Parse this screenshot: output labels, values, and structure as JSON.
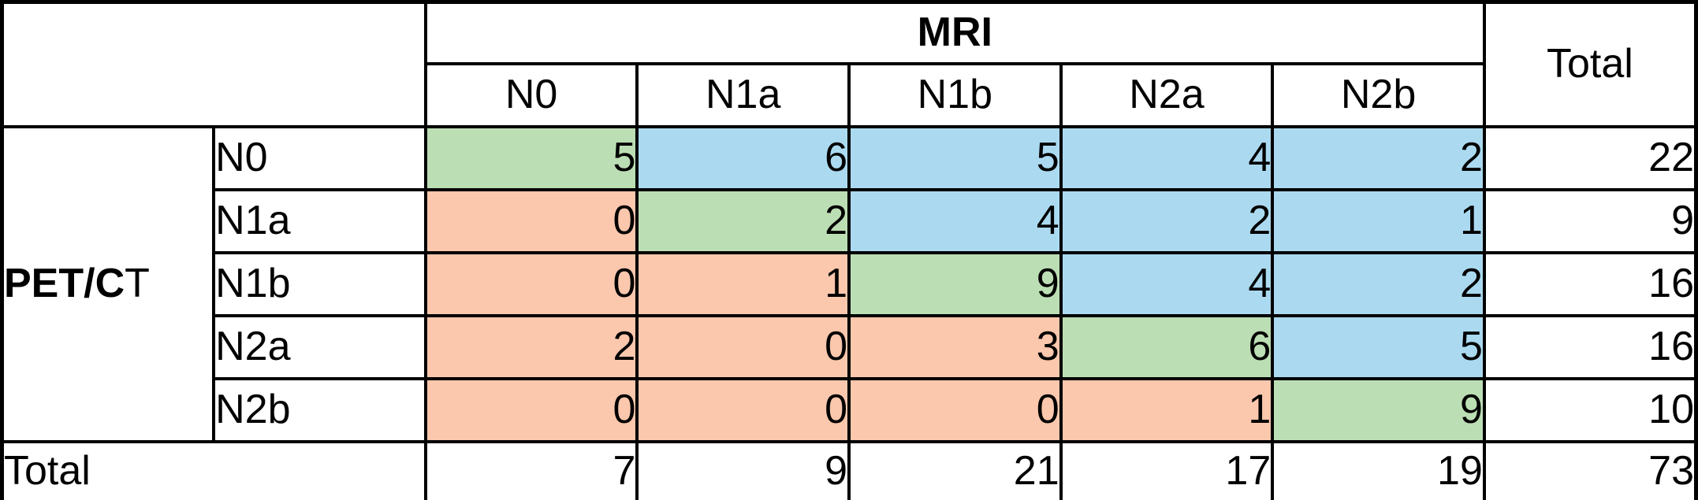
{
  "colors": {
    "agree": "#bcdeb4",
    "mri_higher": "#abdaf0",
    "petct_higher": "#fbc7ad",
    "grid": "#000000"
  },
  "table": {
    "col_group_header": "MRI",
    "row_group_label_bold": "PET/C",
    "row_group_label_tail": "T",
    "total_col_header": "Total",
    "mri_categories": [
      "N0",
      "N1a",
      "N1b",
      "N2a",
      "N2b"
    ],
    "rows": [
      {
        "label": "N0",
        "cells": [
          {
            "v": "5",
            "c": "agree"
          },
          {
            "v": "6",
            "c": "mri_higher"
          },
          {
            "v": "5",
            "c": "mri_higher"
          },
          {
            "v": "4",
            "c": "mri_higher"
          },
          {
            "v": "2",
            "c": "mri_higher"
          }
        ],
        "total": "22"
      },
      {
        "label": "N1a",
        "cells": [
          {
            "v": "0",
            "c": "petct_higher"
          },
          {
            "v": "2",
            "c": "agree"
          },
          {
            "v": "4",
            "c": "mri_higher"
          },
          {
            "v": "2",
            "c": "mri_higher"
          },
          {
            "v": "1",
            "c": "mri_higher"
          }
        ],
        "total": "9"
      },
      {
        "label": "N1b",
        "cells": [
          {
            "v": "0",
            "c": "petct_higher"
          },
          {
            "v": "1",
            "c": "petct_higher"
          },
          {
            "v": "9",
            "c": "agree"
          },
          {
            "v": "4",
            "c": "mri_higher"
          },
          {
            "v": "2",
            "c": "mri_higher"
          }
        ],
        "total": "16"
      },
      {
        "label": "N2a",
        "cells": [
          {
            "v": "2",
            "c": "petct_higher"
          },
          {
            "v": "0",
            "c": "petct_higher"
          },
          {
            "v": "3",
            "c": "petct_higher"
          },
          {
            "v": "6",
            "c": "agree"
          },
          {
            "v": "5",
            "c": "mri_higher"
          }
        ],
        "total": "16"
      },
      {
        "label": "N2b",
        "cells": [
          {
            "v": "0",
            "c": "petct_higher"
          },
          {
            "v": "0",
            "c": "petct_higher"
          },
          {
            "v": "0",
            "c": "petct_higher"
          },
          {
            "v": "1",
            "c": "petct_higher"
          },
          {
            "v": "9",
            "c": "agree"
          }
        ],
        "total": "10"
      }
    ],
    "totals_row": {
      "label": "Total",
      "cells": [
        "7",
        "9",
        "21",
        "17",
        "19"
      ],
      "grand_total": "73"
    }
  },
  "chart_data": {
    "type": "table",
    "row_variable": "PET/CT",
    "column_variable": "MRI",
    "categories": [
      "N0",
      "N1a",
      "N1b",
      "N2a",
      "N2b"
    ],
    "matrix": [
      [
        5,
        6,
        5,
        4,
        2
      ],
      [
        0,
        2,
        4,
        2,
        1
      ],
      [
        0,
        1,
        9,
        4,
        2
      ],
      [
        2,
        0,
        3,
        6,
        5
      ],
      [
        0,
        0,
        0,
        1,
        9
      ]
    ],
    "row_totals": [
      22,
      9,
      16,
      16,
      10
    ],
    "column_totals": [
      7,
      9,
      21,
      17,
      19
    ],
    "grand_total": 73,
    "cell_color_coding": {
      "diagonal_agreement": "#bcdeb4",
      "above_diagonal_mri_higher": "#abdaf0",
      "below_diagonal_petct_higher": "#fbc7ad"
    }
  }
}
